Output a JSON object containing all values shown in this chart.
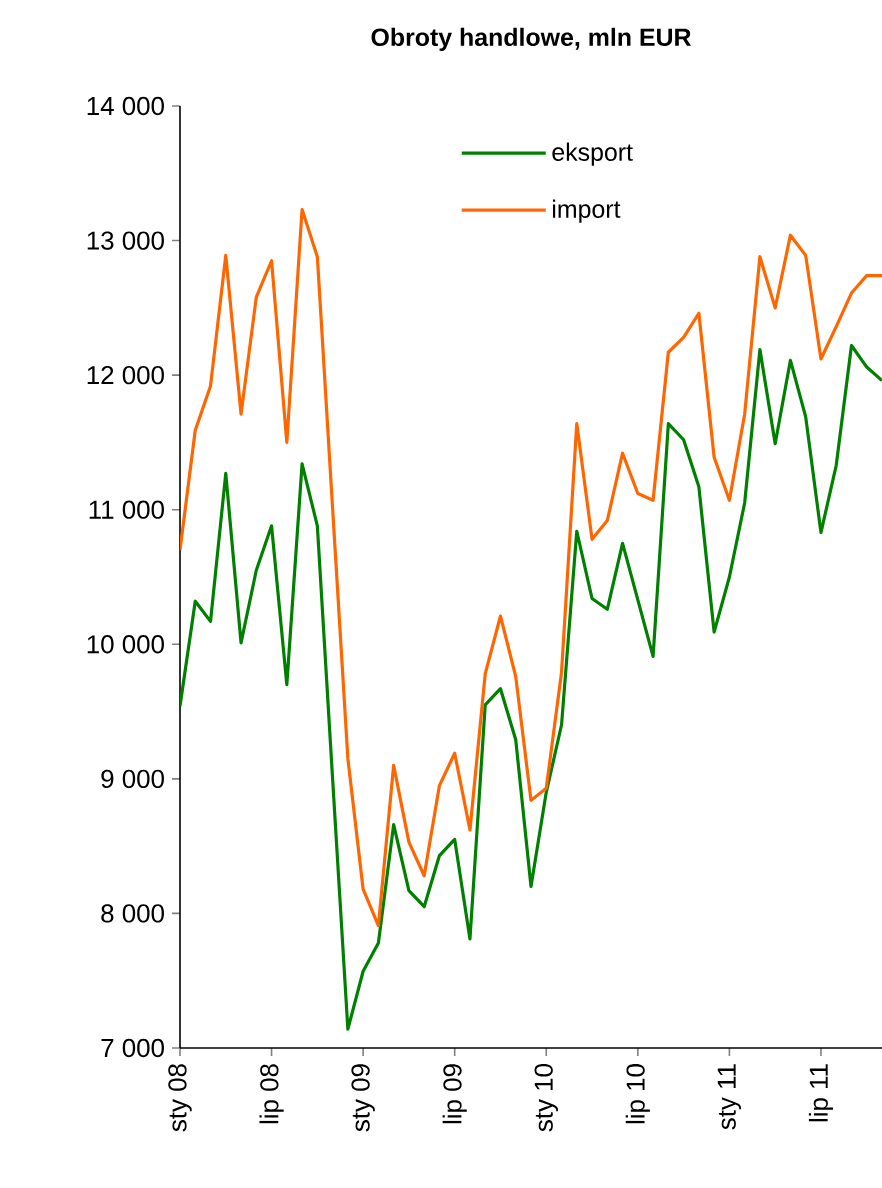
{
  "chart_data": {
    "type": "line",
    "title": "Obroty handlowe, mln EUR",
    "x": [
      "2008-01",
      "2008-02",
      "2008-03",
      "2008-04",
      "2008-05",
      "2008-06",
      "2008-07",
      "2008-08",
      "2008-09",
      "2008-10",
      "2008-11",
      "2008-12",
      "2009-01",
      "2009-02",
      "2009-03",
      "2009-04",
      "2009-05",
      "2009-06",
      "2009-07",
      "2009-08",
      "2009-09",
      "2009-10",
      "2009-11",
      "2009-12",
      "2010-01",
      "2010-02",
      "2010-03",
      "2010-04",
      "2010-05",
      "2010-06",
      "2010-07",
      "2010-08",
      "2010-09",
      "2010-10",
      "2010-11",
      "2010-12",
      "2011-01",
      "2011-02",
      "2011-03",
      "2011-04",
      "2011-05",
      "2011-06",
      "2011-07",
      "2011-08",
      "2011-09",
      "2011-10",
      "2011-11"
    ],
    "series": [
      {
        "name": "eksport",
        "color": "#008000",
        "values": [
          9540,
          10320,
          10170,
          11270,
          10010,
          10550,
          10880,
          9700,
          11340,
          10880,
          9000,
          7140,
          7570,
          7780,
          8660,
          8170,
          8050,
          8430,
          8550,
          7810,
          9550,
          9670,
          9290,
          8200,
          8900,
          9400,
          10840,
          10340,
          10260,
          10750,
          10330,
          9910,
          11640,
          11520,
          11170,
          10090,
          10500,
          11050,
          12190,
          11490,
          12110,
          11690,
          10830,
          11330,
          12220,
          12060,
          11960
        ]
      },
      {
        "name": "import",
        "color": "#ff6600",
        "values": [
          10700,
          11590,
          11920,
          12890,
          11710,
          12580,
          12850,
          11500,
          13230,
          12880,
          11010,
          9150,
          8180,
          7910,
          9100,
          8530,
          8280,
          8950,
          9190,
          8620,
          9780,
          10210,
          9760,
          8840,
          8930,
          9790,
          11640,
          10780,
          10920,
          11420,
          11120,
          11070,
          12170,
          12280,
          12460,
          11390,
          11070,
          11710,
          12880,
          12500,
          13040,
          12890,
          12120,
          12360,
          12610,
          12740,
          12740
        ]
      }
    ],
    "xlim": [
      "2008-01",
      "2011-11"
    ],
    "xticks": [
      {
        "value": "2008-01",
        "label": "sty 08"
      },
      {
        "value": "2008-07",
        "label": "lip 08"
      },
      {
        "value": "2009-01",
        "label": "sty 09"
      },
      {
        "value": "2009-07",
        "label": "lip 09"
      },
      {
        "value": "2010-01",
        "label": "sty 10"
      },
      {
        "value": "2010-07",
        "label": "lip 10"
      },
      {
        "value": "2011-01",
        "label": "sty 11"
      },
      {
        "value": "2011-07",
        "label": "lip 11"
      }
    ],
    "ylim": [
      7000,
      14000
    ],
    "yticks": [
      {
        "value": 7000,
        "label": "7 000"
      },
      {
        "value": 8000,
        "label": "8 000"
      },
      {
        "value": 9000,
        "label": "9 000"
      },
      {
        "value": 10000,
        "label": "10 000"
      },
      {
        "value": 11000,
        "label": "11 000"
      },
      {
        "value": 12000,
        "label": "12 000"
      },
      {
        "value": 13000,
        "label": "13 000"
      },
      {
        "value": 14000,
        "label": "14 000"
      }
    ],
    "legend": "top right",
    "marker": "none",
    "line_style": "solid",
    "grid": false
  }
}
